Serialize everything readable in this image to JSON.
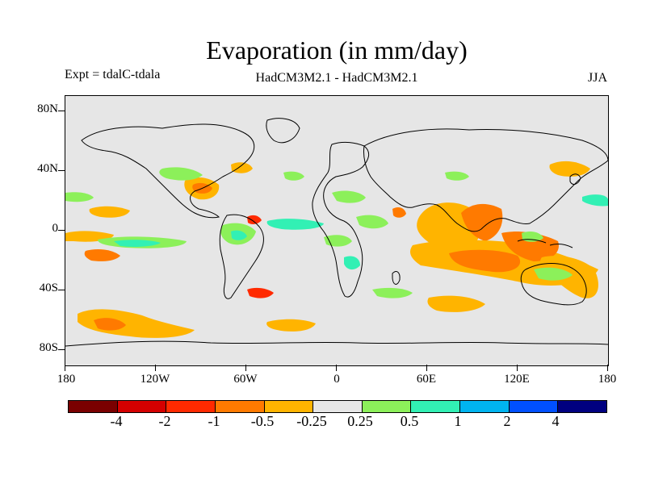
{
  "title": "Evaporation (in mm/day)",
  "expt_label": "Expt = tdalC-tdala",
  "model_label": "HadCM3M2.1 - HadCM3M2.1",
  "season_label": "JJA",
  "y_ticks": [
    "80N",
    "40N",
    "0",
    "40S",
    "80S"
  ],
  "x_ticks": [
    "180",
    "120W",
    "60W",
    "0",
    "60E",
    "120E",
    "180"
  ],
  "colorbar": {
    "colors": [
      "#7a0000",
      "#d40000",
      "#ff2a00",
      "#ff7a00",
      "#ffb400",
      "#e6e6e6",
      "#8cf05a",
      "#32f0b4",
      "#00b4f0",
      "#0050ff",
      "#000080"
    ],
    "labels": [
      "-4",
      "-2",
      "-1",
      "-0.5",
      "-0.25",
      "0.25",
      "0.5",
      "1",
      "2",
      "4"
    ]
  },
  "map_data": {
    "type": "contour-map",
    "projection": "equirectangular",
    "lon_range": [
      -180,
      180
    ],
    "lat_range": [
      -90,
      90
    ],
    "units": "mm/day"
  }
}
